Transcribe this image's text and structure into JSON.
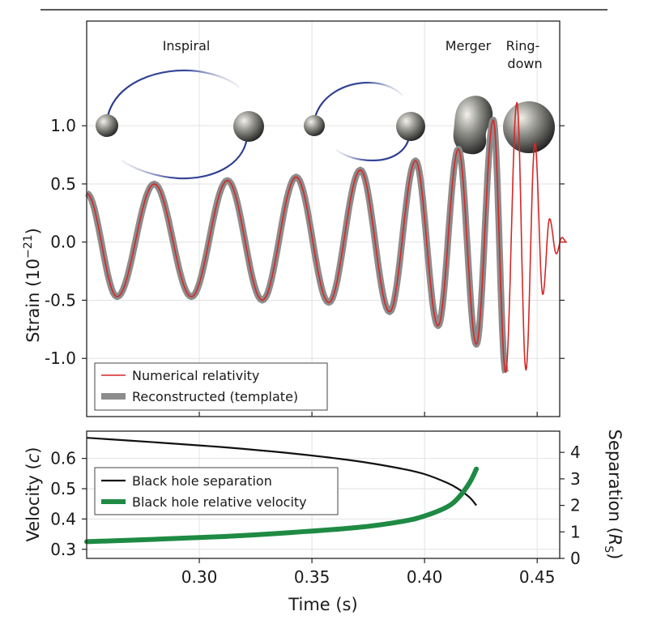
{
  "chart_data": [
    {
      "type": "line",
      "panel": "top",
      "phase_labels": [
        "Inspiral",
        "Merger",
        "Ring-\ndown"
      ],
      "ylabel": "Strain (10^−21)",
      "ylim": [
        -1.5,
        1.9
      ],
      "xlim": [
        0.25,
        0.46
      ],
      "yticks": [
        1.0,
        0.5,
        0.0,
        -0.5,
        -1.0
      ],
      "ytick_labels": [
        "1.0",
        "0.5",
        "0.0",
        "-0.5",
        "-1.0"
      ],
      "grid": true,
      "legend_position": "bottom-left",
      "series": [
        {
          "name": "Numerical relativity",
          "color": "#d62728",
          "style": "thin"
        },
        {
          "name": "Reconstructed (template)",
          "color": "#8c8c8c",
          "style": "thick"
        }
      ],
      "waveform": {
        "peaks": [
          {
            "t": 0.28,
            "v": 0.5
          },
          {
            "t": 0.2965,
            "v": -0.47
          },
          {
            "t": 0.3125,
            "v": 0.53
          },
          {
            "t": 0.328,
            "v": -0.5
          },
          {
            "t": 0.343,
            "v": 0.56
          },
          {
            "t": 0.3575,
            "v": -0.52
          },
          {
            "t": 0.3715,
            "v": 0.62
          },
          {
            "t": 0.3845,
            "v": -0.6
          },
          {
            "t": 0.396,
            "v": 0.7
          },
          {
            "t": 0.406,
            "v": -0.72
          },
          {
            "t": 0.415,
            "v": 0.8
          },
          {
            "t": 0.423,
            "v": -0.88
          },
          {
            "t": 0.4305,
            "v": 1.05
          },
          {
            "t": 0.436,
            "v": -1.12
          },
          {
            "t": 0.441,
            "v": 1.2
          },
          {
            "t": 0.445,
            "v": -1.1
          },
          {
            "t": 0.449,
            "v": 0.85
          },
          {
            "t": 0.4525,
            "v": -0.45
          },
          {
            "t": 0.4555,
            "v": 0.2
          },
          {
            "t": 0.4585,
            "v": -0.1
          },
          {
            "t": 0.461,
            "v": 0.04
          },
          {
            "t": 0.463,
            "v": 0.0
          }
        ]
      }
    },
    {
      "type": "line",
      "panel": "bottom",
      "xlabel": "Time (s)",
      "ylabel_left": "Velocity (c)",
      "ylabel_right": "Separation (R_S)",
      "xlim": [
        0.25,
        0.46
      ],
      "ylim_left": [
        0.27,
        0.69
      ],
      "ylim_right": [
        0.0,
        4.8
      ],
      "xticks": [
        0.3,
        0.35,
        0.4,
        0.45
      ],
      "xtick_labels": [
        "0.30",
        "0.35",
        "0.40",
        "0.45"
      ],
      "yticks_left": [
        0.3,
        0.4,
        0.5,
        0.6
      ],
      "ytick_labels_left": [
        "0.3",
        "0.4",
        "0.5",
        "0.6"
      ],
      "yticks_right": [
        0,
        1,
        2,
        3,
        4
      ],
      "ytick_labels_right": [
        "0",
        "1",
        "2",
        "3",
        "4"
      ],
      "grid": true,
      "legend_position": "upper-left",
      "series": [
        {
          "name": "Black hole separation",
          "color": "#111111",
          "axis": "right",
          "x": [
            0.25,
            0.28,
            0.31,
            0.34,
            0.37,
            0.39,
            0.4,
            0.41,
            0.415,
            0.42,
            0.423
          ],
          "y": [
            4.55,
            4.38,
            4.2,
            3.97,
            3.67,
            3.38,
            3.18,
            2.85,
            2.62,
            2.3,
            2.0
          ]
        },
        {
          "name": "Black hole relative velocity",
          "color": "#1e8a44",
          "axis": "left",
          "x": [
            0.25,
            0.28,
            0.31,
            0.34,
            0.37,
            0.39,
            0.4,
            0.41,
            0.415,
            0.42,
            0.423
          ],
          "y": [
            0.325,
            0.333,
            0.342,
            0.355,
            0.372,
            0.392,
            0.41,
            0.44,
            0.47,
            0.52,
            0.565
          ]
        }
      ]
    }
  ]
}
